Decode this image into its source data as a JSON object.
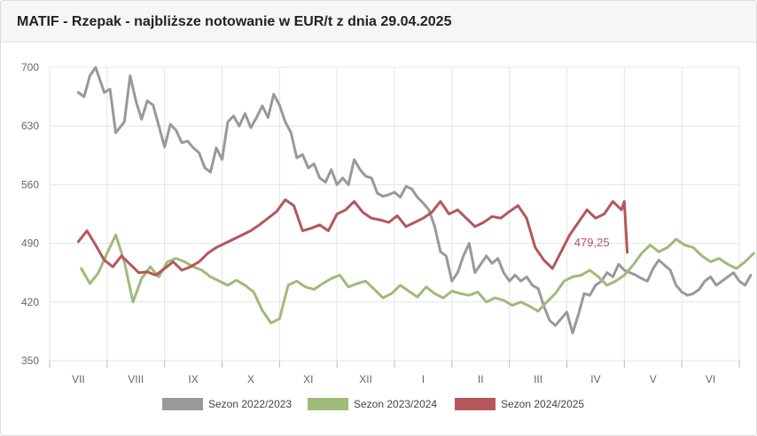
{
  "chart_data": {
    "type": "line",
    "title": "MATIF - Rzepak - najbliższe notowanie w EUR/t z dnia 29.04.2025",
    "xlabel": "",
    "ylabel": "",
    "ylim": [
      350,
      700
    ],
    "yticks": [
      "700",
      "630",
      "560",
      "490",
      "420",
      "350"
    ],
    "ytick_values": [
      700,
      630,
      560,
      490,
      420,
      350
    ],
    "categories": [
      "VII",
      "VIII",
      "IX",
      "X",
      "XI",
      "XII",
      "I",
      "II",
      "III",
      "IV",
      "V",
      "VI"
    ],
    "grid": true,
    "legend_position": "bottom",
    "annotation": {
      "text": "479,25",
      "series": "Sezon 2024/2025",
      "x": 9.55,
      "y": 479.25
    },
    "series": [
      {
        "name": "Sezon 2022/2023",
        "color": "#999999",
        "x": [
          0.0,
          0.1,
          0.2,
          0.3,
          0.45,
          0.55,
          0.65,
          0.8,
          0.9,
          1.0,
          1.1,
          1.2,
          1.3,
          1.4,
          1.5,
          1.6,
          1.7,
          1.8,
          1.9,
          2.0,
          2.1,
          2.2,
          2.3,
          2.4,
          2.5,
          2.6,
          2.7,
          2.8,
          2.9,
          3.0,
          3.1,
          3.2,
          3.3,
          3.4,
          3.5,
          3.6,
          3.7,
          3.8,
          3.9,
          4.0,
          4.1,
          4.2,
          4.3,
          4.4,
          4.5,
          4.6,
          4.7,
          4.8,
          4.9,
          5.0,
          5.1,
          5.2,
          5.3,
          5.4,
          5.5,
          5.6,
          5.7,
          5.8,
          5.9,
          6.0,
          6.1,
          6.2,
          6.3,
          6.4,
          6.5,
          6.6,
          6.7,
          6.8,
          6.9,
          7.0,
          7.1,
          7.2,
          7.3,
          7.4,
          7.5,
          7.6,
          7.7,
          7.8,
          7.9,
          8.0,
          8.1,
          8.2,
          8.3,
          8.4,
          8.5,
          8.6,
          8.7,
          8.8,
          8.9,
          9.0,
          9.1,
          9.2,
          9.3,
          9.4,
          9.5,
          9.6,
          9.7,
          9.8,
          9.9,
          10.0,
          10.1,
          10.2,
          10.3,
          10.4,
          10.5,
          10.6,
          10.7,
          10.8,
          10.9,
          11.0,
          11.1,
          11.2,
          11.3,
          11.4,
          11.5,
          11.6,
          11.7
        ],
        "values": [
          670,
          665,
          690,
          700,
          670,
          674,
          622,
          635,
          690,
          660,
          638,
          660,
          655,
          630,
          605,
          632,
          625,
          610,
          612,
          604,
          598,
          580,
          575,
          604,
          590,
          635,
          642,
          630,
          645,
          628,
          640,
          654,
          640,
          668,
          655,
          635,
          622,
          592,
          596,
          580,
          585,
          568,
          563,
          578,
          560,
          568,
          560,
          590,
          578,
          570,
          568,
          550,
          546,
          548,
          551,
          545,
          558,
          555,
          545,
          538,
          530,
          510,
          480,
          475,
          445,
          455,
          475,
          490,
          455,
          465,
          475,
          466,
          472,
          455,
          445,
          452,
          445,
          450,
          440,
          436,
          415,
          398,
          392,
          400,
          408,
          383,
          405,
          430,
          428,
          440,
          445,
          455,
          450,
          465,
          458,
          455,
          452,
          448,
          445,
          460,
          470,
          464,
          458,
          440,
          432,
          428,
          430,
          435,
          445,
          450,
          440,
          445,
          450,
          455,
          445,
          440,
          452
        ]
      },
      {
        "name": "Sezon 2023/2024",
        "color": "#9fbb78",
        "x": [
          0.05,
          0.2,
          0.35,
          0.5,
          0.65,
          0.8,
          0.95,
          1.1,
          1.25,
          1.4,
          1.55,
          1.7,
          1.85,
          2.0,
          2.15,
          2.3,
          2.45,
          2.6,
          2.75,
          2.9,
          3.05,
          3.2,
          3.35,
          3.5,
          3.65,
          3.8,
          3.95,
          4.1,
          4.25,
          4.4,
          4.55,
          4.7,
          4.85,
          5.0,
          5.15,
          5.3,
          5.45,
          5.6,
          5.75,
          5.9,
          6.05,
          6.2,
          6.35,
          6.5,
          6.65,
          6.8,
          6.95,
          7.1,
          7.25,
          7.4,
          7.55,
          7.7,
          7.85,
          8.0,
          8.15,
          8.3,
          8.45,
          8.6,
          8.75,
          8.9,
          9.05,
          9.2,
          9.35,
          9.5,
          9.65,
          9.8,
          9.95,
          10.1,
          10.25,
          10.4,
          10.55,
          10.7,
          10.85,
          11.0,
          11.15,
          11.3,
          11.45,
          11.6,
          11.75
        ],
        "values": [
          460,
          442,
          455,
          478,
          500,
          468,
          420,
          448,
          462,
          450,
          468,
          472,
          468,
          462,
          458,
          450,
          445,
          440,
          446,
          440,
          432,
          410,
          395,
          400,
          440,
          445,
          438,
          435,
          442,
          448,
          452,
          438,
          442,
          445,
          435,
          425,
          430,
          440,
          433,
          426,
          438,
          430,
          425,
          433,
          430,
          428,
          432,
          420,
          425,
          422,
          416,
          420,
          415,
          409,
          420,
          430,
          445,
          450,
          452,
          458,
          450,
          440,
          445,
          452,
          464,
          478,
          488,
          480,
          485,
          495,
          488,
          485,
          475,
          468,
          472,
          465,
          460,
          468,
          478
        ]
      },
      {
        "name": "Sezon 2024/2025",
        "color": "#b4575a",
        "x": [
          0.0,
          0.15,
          0.3,
          0.45,
          0.6,
          0.75,
          0.9,
          1.05,
          1.2,
          1.35,
          1.5,
          1.65,
          1.8,
          1.95,
          2.1,
          2.25,
          2.4,
          2.55,
          2.7,
          2.85,
          3.0,
          3.15,
          3.3,
          3.45,
          3.6,
          3.75,
          3.9,
          4.05,
          4.2,
          4.35,
          4.5,
          4.65,
          4.8,
          4.95,
          5.1,
          5.25,
          5.4,
          5.55,
          5.7,
          5.85,
          6.0,
          6.15,
          6.3,
          6.45,
          6.6,
          6.75,
          6.9,
          7.05,
          7.2,
          7.35,
          7.5,
          7.65,
          7.8,
          7.95,
          8.1,
          8.25,
          8.4,
          8.55,
          8.7,
          8.85,
          9.0,
          9.15,
          9.3,
          9.45,
          9.5,
          9.55
        ],
        "values": [
          492,
          505,
          488,
          470,
          462,
          475,
          465,
          455,
          456,
          452,
          460,
          468,
          458,
          462,
          468,
          478,
          485,
          490,
          495,
          500,
          505,
          512,
          520,
          528,
          542,
          535,
          505,
          508,
          512,
          505,
          525,
          530,
          540,
          527,
          520,
          518,
          515,
          523,
          510,
          515,
          520,
          527,
          540,
          525,
          530,
          520,
          510,
          515,
          522,
          520,
          528,
          535,
          520,
          485,
          470,
          460,
          480,
          500,
          515,
          530,
          520,
          525,
          540,
          530,
          540,
          479.25
        ]
      }
    ]
  }
}
